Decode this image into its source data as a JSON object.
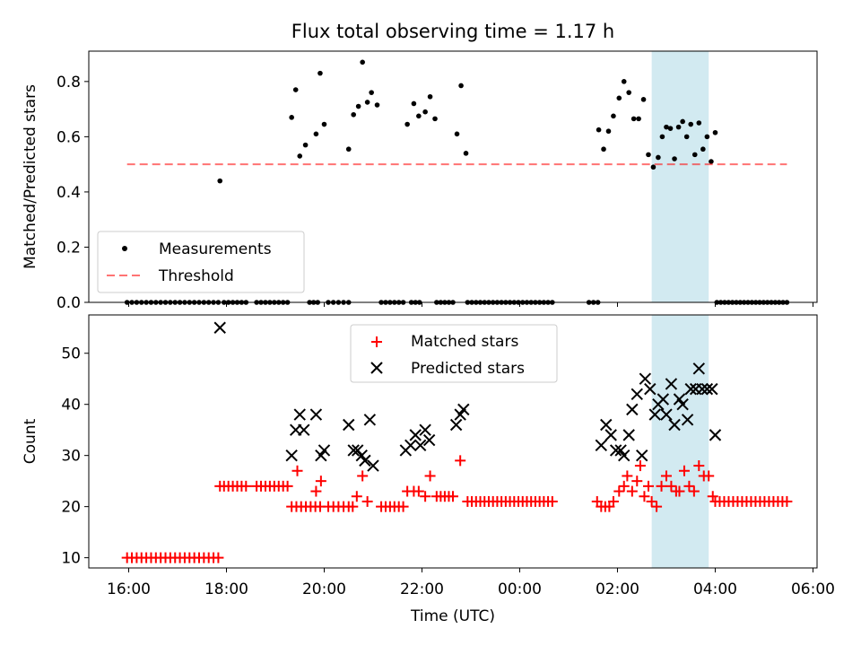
{
  "chart_data": [
    {
      "type": "scatter",
      "title": "Flux total observing time = 1.17 h",
      "ylabel": "Matched/Predicted stars",
      "xlabel": "",
      "xlim": [
        "15:11",
        "06:05"
      ],
      "ylim": [
        0,
        0.91
      ],
      "yticks": [
        "0.0",
        "0.2",
        "0.4",
        "0.6",
        "0.8"
      ],
      "threshold": 0.5,
      "threshold_x": [
        "15:58",
        "05:28"
      ],
      "highlight": {
        "start": "02:42",
        "end": "03:52",
        "color": "#add8e6"
      },
      "legend": {
        "position": "lower-left",
        "items": [
          "Measurements",
          "Threshold"
        ]
      },
      "series": [
        {
          "name": "Measurements",
          "color": "#000000",
          "points": [
            [
              "17:52",
              0.44
            ],
            [
              "19:20",
              0.67
            ],
            [
              "19:25",
              0.77
            ],
            [
              "19:30",
              0.53
            ],
            [
              "19:37",
              0.57
            ],
            [
              "19:50",
              0.61
            ],
            [
              "19:55",
              0.83
            ],
            [
              "20:00",
              0.645
            ],
            [
              "20:30",
              0.555
            ],
            [
              "20:36",
              0.68
            ],
            [
              "20:42",
              0.71
            ],
            [
              "20:47",
              0.87
            ],
            [
              "20:53",
              0.725
            ],
            [
              "20:58",
              0.76
            ],
            [
              "21:05",
              0.715
            ],
            [
              "21:42",
              0.645
            ],
            [
              "21:50",
              0.72
            ],
            [
              "21:56",
              0.675
            ],
            [
              "22:04",
              0.69
            ],
            [
              "22:10",
              0.745
            ],
            [
              "22:16",
              0.665
            ],
            [
              "22:43",
              0.61
            ],
            [
              "22:48",
              0.785
            ],
            [
              "22:54",
              0.54
            ],
            [
              "01:37",
              0.625
            ],
            [
              "01:43",
              0.555
            ],
            [
              "01:49",
              0.62
            ],
            [
              "01:55",
              0.675
            ],
            [
              "02:02",
              0.74
            ],
            [
              "02:08",
              0.8
            ],
            [
              "02:14",
              0.76
            ],
            [
              "02:20",
              0.665
            ],
            [
              "02:26",
              0.665
            ],
            [
              "02:32",
              0.735
            ],
            [
              "02:38",
              0.535
            ],
            [
              "02:44",
              0.49
            ],
            [
              "02:50",
              0.525
            ],
            [
              "02:55",
              0.6
            ],
            [
              "03:00",
              0.635
            ],
            [
              "03:05",
              0.63
            ],
            [
              "03:10",
              0.52
            ],
            [
              "03:15",
              0.635
            ],
            [
              "03:20",
              0.655
            ],
            [
              "03:25",
              0.6
            ],
            [
              "03:30",
              0.645
            ],
            [
              "03:35",
              0.535
            ],
            [
              "03:40",
              0.65
            ],
            [
              "03:45",
              0.555
            ],
            [
              "03:50",
              0.6
            ],
            [
              "03:55",
              0.51
            ],
            [
              "04:00",
              0.615
            ]
          ],
          "zero_runs": [
            [
              "15:58",
              "17:50",
              20
            ],
            [
              "17:57",
              "18:24",
              6
            ],
            [
              "18:37",
              "19:15",
              8
            ],
            [
              "19:42",
              "19:52",
              3
            ],
            [
              "20:05",
              "20:30",
              5
            ],
            [
              "21:10",
              "21:37",
              6
            ],
            [
              "21:47",
              "21:57",
              3
            ],
            [
              "22:18",
              "22:38",
              5
            ],
            [
              "22:56",
              "00:40",
              21
            ],
            [
              "01:25",
              "01:36",
              3
            ],
            [
              "04:02",
              "05:28",
              19
            ]
          ]
        }
      ]
    },
    {
      "type": "scatter",
      "title": "",
      "xlabel": "Time (UTC)",
      "ylabel": "Count",
      "xlim": [
        "15:11",
        "06:05"
      ],
      "ylim": [
        8,
        57.5
      ],
      "yticks": [
        "10",
        "20",
        "30",
        "40",
        "50"
      ],
      "xticks": [
        "16:00",
        "18:00",
        "20:00",
        "22:00",
        "00:00",
        "02:00",
        "04:00",
        "06:00"
      ],
      "highlight": {
        "start": "02:42",
        "end": "03:52",
        "color": "#add8e6"
      },
      "legend": {
        "position": "upper-center",
        "items": [
          "Matched stars",
          "Predicted stars"
        ]
      },
      "series": [
        {
          "name": "Matched stars",
          "marker": "+",
          "color": "#ff0000",
          "runs": [
            [
              "15:58",
              "17:50",
              10,
              20
            ],
            [
              "17:57",
              "18:24",
              24,
              6
            ],
            [
              "18:37",
              "19:15",
              24,
              8
            ],
            [
              "19:20",
              "19:55",
              20,
              7
            ],
            [
              "20:05",
              "20:30",
              20,
              5
            ],
            [
              "21:10",
              "21:37",
              20,
              6
            ],
            [
              "22:18",
              "22:38",
              22,
              5
            ],
            [
              "22:56",
              "00:40",
              21,
              21
            ],
            [
              "04:00",
              "05:28",
              21,
              17
            ]
          ],
          "points": [
            [
              "17:52",
              24
            ],
            [
              "19:27",
              27
            ],
            [
              "19:50",
              23
            ],
            [
              "19:56",
              25
            ],
            [
              "20:35",
              20
            ],
            [
              "20:40",
              22
            ],
            [
              "20:47",
              26
            ],
            [
              "20:53",
              21
            ],
            [
              "21:42",
              23
            ],
            [
              "21:50",
              23
            ],
            [
              "21:56",
              23
            ],
            [
              "22:04",
              22
            ],
            [
              "22:10",
              26
            ],
            [
              "22:47",
              29
            ],
            [
              "01:35",
              21
            ],
            [
              "01:40",
              20
            ],
            [
              "01:45",
              20
            ],
            [
              "01:50",
              20
            ],
            [
              "01:55",
              21
            ],
            [
              "02:02",
              23
            ],
            [
              "02:08",
              24
            ],
            [
              "02:12",
              26
            ],
            [
              "02:18",
              23
            ],
            [
              "02:24",
              25
            ],
            [
              "02:28",
              28
            ],
            [
              "02:33",
              22
            ],
            [
              "02:38",
              24
            ],
            [
              "02:42",
              21
            ],
            [
              "02:48",
              20
            ],
            [
              "02:54",
              24
            ],
            [
              "03:00",
              26
            ],
            [
              "03:06",
              24
            ],
            [
              "03:12",
              23
            ],
            [
              "03:16",
              23
            ],
            [
              "03:22",
              27
            ],
            [
              "03:28",
              24
            ],
            [
              "03:34",
              23
            ],
            [
              "03:40",
              28
            ],
            [
              "03:46",
              26
            ],
            [
              "03:52",
              26
            ],
            [
              "03:57",
              22
            ]
          ]
        },
        {
          "name": "Predicted stars",
          "marker": "x",
          "color": "#000000",
          "points": [
            [
              "17:52",
              55
            ],
            [
              "19:20",
              30
            ],
            [
              "19:25",
              35
            ],
            [
              "19:30",
              38
            ],
            [
              "19:35",
              35
            ],
            [
              "19:50",
              38
            ],
            [
              "19:56",
              30
            ],
            [
              "20:00",
              31
            ],
            [
              "20:30",
              36
            ],
            [
              "20:36",
              31
            ],
            [
              "20:41",
              31
            ],
            [
              "20:46",
              30
            ],
            [
              "20:50",
              29
            ],
            [
              "20:56",
              37
            ],
            [
              "21:00",
              28
            ],
            [
              "21:40",
              31
            ],
            [
              "21:46",
              32
            ],
            [
              "21:52",
              34
            ],
            [
              "21:58",
              32
            ],
            [
              "22:04",
              35
            ],
            [
              "22:09",
              33
            ],
            [
              "22:42",
              36
            ],
            [
              "22:47",
              38
            ],
            [
              "22:51",
              39
            ],
            [
              "01:40",
              32
            ],
            [
              "01:46",
              36
            ],
            [
              "01:52",
              34
            ],
            [
              "01:58",
              31
            ],
            [
              "02:04",
              31
            ],
            [
              "02:08",
              30
            ],
            [
              "02:14",
              34
            ],
            [
              "02:18",
              39
            ],
            [
              "02:24",
              42
            ],
            [
              "02:30",
              30
            ],
            [
              "02:34",
              45
            ],
            [
              "02:40",
              43
            ],
            [
              "02:46",
              38
            ],
            [
              "02:50",
              40
            ],
            [
              "02:56",
              41
            ],
            [
              "03:00",
              38
            ],
            [
              "03:06",
              44
            ],
            [
              "03:10",
              36
            ],
            [
              "03:16",
              41
            ],
            [
              "03:20",
              40
            ],
            [
              "03:26",
              37
            ],
            [
              "03:30",
              43
            ],
            [
              "03:36",
              43
            ],
            [
              "03:40",
              47
            ],
            [
              "03:44",
              43
            ],
            [
              "03:50",
              43
            ],
            [
              "03:56",
              43
            ],
            [
              "04:00",
              34
            ]
          ]
        }
      ]
    }
  ]
}
